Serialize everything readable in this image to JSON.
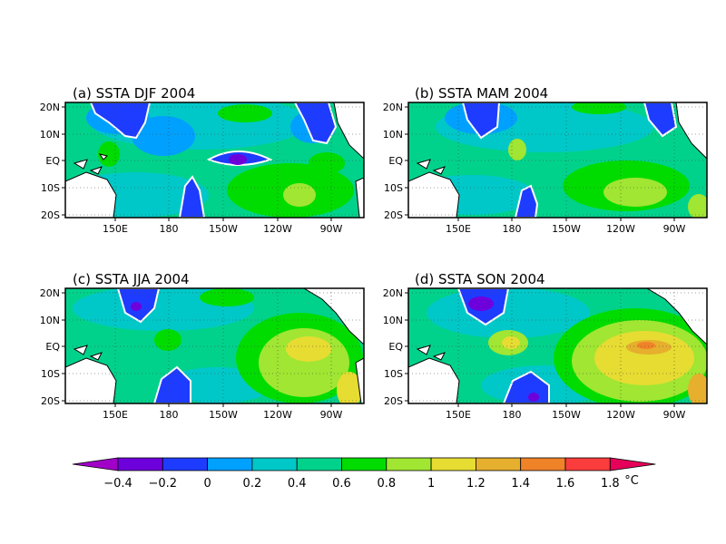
{
  "panels": [
    {
      "title": "(a)  SSTA  DJF  2004"
    },
    {
      "title": "(b)  SSTA  MAM  2004"
    },
    {
      "title": "(c)  SSTA  JJA  2004"
    },
    {
      "title": "(d)  SSTA  SON  2004"
    }
  ],
  "lat_ticks": [
    "20N",
    "10N",
    "EQ",
    "10S",
    "20S"
  ],
  "lon_ticks": [
    "150E",
    "180",
    "150W",
    "120W",
    "90W"
  ],
  "colorbar": {
    "labels": [
      "-0.4",
      "-0.2",
      "0",
      "0.2",
      "0.4",
      "0.6",
      "0.8",
      "1",
      "1.2",
      "1.4",
      "1.6",
      "1.8"
    ],
    "unit": "°C",
    "colors": [
      "#a000c8",
      "#6e00dc",
      "#1e3cff",
      "#00a0ff",
      "#00c8c8",
      "#00d28c",
      "#00dc00",
      "#a0e632",
      "#e6dc32",
      "#e6af2d",
      "#f08228",
      "#fa3c3c",
      "#e6005a"
    ]
  },
  "colors": {
    "land": "#ffffff",
    "coast": "#000000",
    "zero_contour": "#ffffff"
  }
}
